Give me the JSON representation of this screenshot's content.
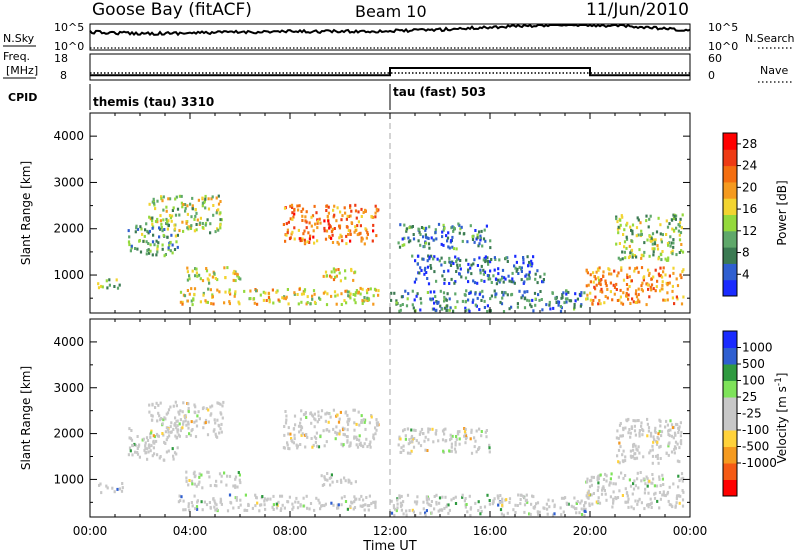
{
  "header": {
    "station": "Goose Bay (fitACF)",
    "beam": "Beam 10",
    "date": "11/Jun/2010"
  },
  "summary": {
    "nsky_label": "N.Sky",
    "nsky_ticks": [
      "10^5",
      "10^0"
    ],
    "nsearch_label": "N.Search",
    "nsearch_ticks": [
      "10^5",
      "10^0"
    ],
    "freq_label_1": "Freq.",
    "freq_label_2": "[MHz]",
    "freq_ticks": [
      "18",
      "8"
    ],
    "nave_label": "Nave",
    "nave_ticks": [
      "60",
      "0"
    ],
    "cpid_label": "CPID",
    "cpid_segments": [
      {
        "name": "themis (tau) 3310",
        "start_hour": 0,
        "end_hour": 12
      },
      {
        "name": "tau (fast) 503",
        "start_hour": 12,
        "end_hour": 24
      }
    ],
    "nave_step": [
      {
        "start_hour": 0,
        "end_hour": 12,
        "value": 12
      },
      {
        "start_hour": 12,
        "end_hour": 20,
        "value": 30
      },
      {
        "start_hour": 20,
        "end_hour": 24,
        "value": 12
      }
    ]
  },
  "colors": {
    "power": [
      "#1a2bff",
      "#2f5fd0",
      "#3b7a52",
      "#5fa86a",
      "#94d93c",
      "#f2d430",
      "#f59a1f",
      "#f46e10",
      "#ee3b14",
      "#ff0000"
    ],
    "velocity": [
      "#ff0000",
      "#f55a14",
      "#f59a1f",
      "#ffd23a",
      "#c8c8c8",
      "#c8c8c8",
      "#7ee35a",
      "#2f9a40",
      "#2f5fd0",
      "#1a2bff"
    ]
  },
  "chart_data": [
    {
      "type": "heatmap",
      "title": "Power",
      "xlabel": "",
      "ylabel": "Slant Range [km]",
      "x_unit_label": "Time UT",
      "xlim_hours": [
        0,
        24
      ],
      "ylim": [
        180,
        4500
      ],
      "yticks": [
        "1000",
        "2000",
        "3000",
        "4000"
      ],
      "colorbar_label": "Power [dB]",
      "colorbar_ticks": [
        "4",
        "8",
        "12",
        "16",
        "20",
        "24",
        "28"
      ],
      "colorbar_range": [
        0,
        30
      ],
      "regions": [
        {
          "t0": 2.3,
          "t1": 5.3,
          "r0": 1900,
          "r1": 2700,
          "level": 0.45
        },
        {
          "t0": 1.5,
          "t1": 3.5,
          "r0": 1400,
          "r1": 2100,
          "level": 0.3
        },
        {
          "t0": 3.8,
          "t1": 6.0,
          "r0": 800,
          "r1": 1150,
          "level": 0.5
        },
        {
          "t0": 3.5,
          "t1": 11.5,
          "r0": 350,
          "r1": 700,
          "level": 0.55
        },
        {
          "t0": 7.7,
          "t1": 11.5,
          "r0": 1650,
          "r1": 2500,
          "level": 0.75
        },
        {
          "t0": 9.2,
          "t1": 10.6,
          "r0": 850,
          "r1": 1150,
          "level": 0.6
        },
        {
          "t0": 12.3,
          "t1": 16.0,
          "r0": 1550,
          "r1": 2100,
          "level": 0.2
        },
        {
          "t0": 12.8,
          "t1": 18.2,
          "r0": 800,
          "r1": 1400,
          "level": 0.15
        },
        {
          "t0": 12.0,
          "t1": 19.8,
          "r0": 200,
          "r1": 650,
          "level": 0.2
        },
        {
          "t0": 19.8,
          "t1": 23.7,
          "r0": 350,
          "r1": 1150,
          "level": 0.7
        },
        {
          "t0": 21.0,
          "t1": 23.7,
          "r0": 1300,
          "r1": 2300,
          "level": 0.4
        },
        {
          "t0": 0.2,
          "t1": 1.3,
          "r0": 700,
          "r1": 900,
          "level": 0.35
        }
      ]
    },
    {
      "type": "heatmap",
      "title": "Velocity",
      "xlabel": "Time UT",
      "ylabel": "Slant Range [km]",
      "xlim_hours": [
        0,
        24
      ],
      "ylim": [
        180,
        4500
      ],
      "xticks": [
        "00:00",
        "04:00",
        "08:00",
        "12:00",
        "16:00",
        "20:00",
        "00:00"
      ],
      "yticks": [
        "1000",
        "2000",
        "3000",
        "4000"
      ],
      "colorbar_label": "Velocity [m s^-1]",
      "colorbar_ticks": [
        "1000",
        "500",
        "100",
        "25",
        "-25",
        "-100",
        "-500",
        "-1000"
      ],
      "regions": [
        {
          "t0": 2.3,
          "t1": 5.3,
          "r0": 1900,
          "r1": 2700,
          "level": 0.5
        },
        {
          "t0": 1.5,
          "t1": 3.5,
          "r0": 1400,
          "r1": 2100,
          "level": 0.5
        },
        {
          "t0": 3.8,
          "t1": 6.0,
          "r0": 800,
          "r1": 1150,
          "level": 0.5
        },
        {
          "t0": 3.5,
          "t1": 11.5,
          "r0": 300,
          "r1": 650,
          "level": 0.65
        },
        {
          "t0": 7.7,
          "t1": 11.5,
          "r0": 1650,
          "r1": 2500,
          "level": 0.45
        },
        {
          "t0": 9.2,
          "t1": 10.6,
          "r0": 850,
          "r1": 1150,
          "level": 0.5
        },
        {
          "t0": 12.3,
          "t1": 16.0,
          "r0": 1550,
          "r1": 2100,
          "level": 0.5
        },
        {
          "t0": 12.0,
          "t1": 19.8,
          "r0": 200,
          "r1": 650,
          "level": 0.65
        },
        {
          "t0": 19.8,
          "t1": 23.7,
          "r0": 350,
          "r1": 1150,
          "level": 0.5
        },
        {
          "t0": 21.0,
          "t1": 23.7,
          "r0": 1300,
          "r1": 2300,
          "level": 0.5
        },
        {
          "t0": 0.2,
          "t1": 1.3,
          "r0": 700,
          "r1": 900,
          "level": 0.75
        }
      ]
    }
  ]
}
